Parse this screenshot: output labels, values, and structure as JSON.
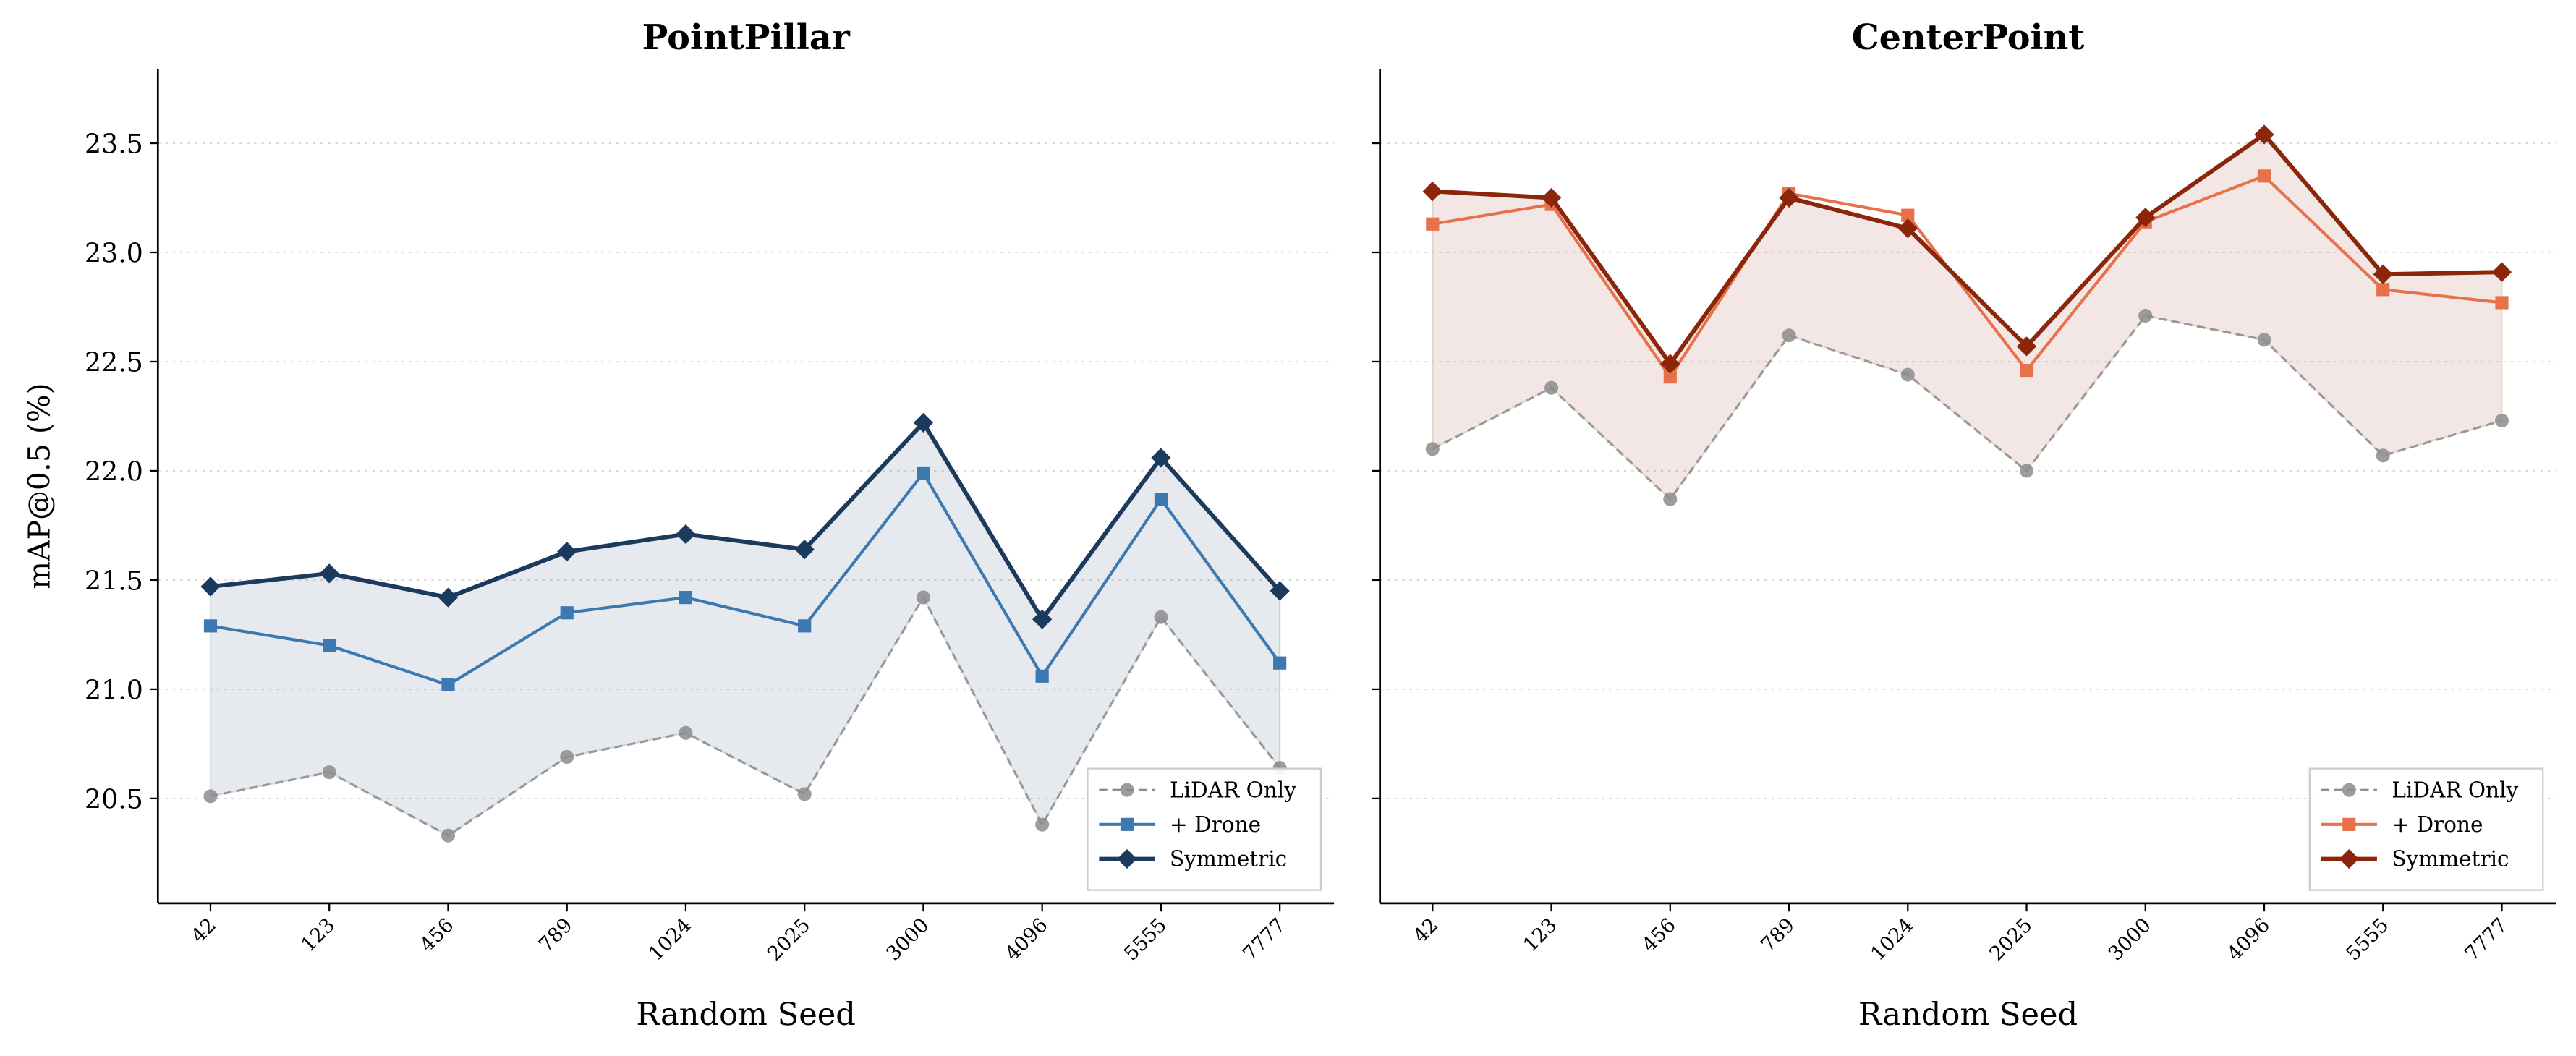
{
  "chart_data": [
    {
      "type": "line",
      "title": "PointPillar",
      "xlabel": "Random Seed",
      "ylabel": "mAP@0.5 (%)",
      "categories": [
        "42",
        "123",
        "456",
        "789",
        "1024",
        "2025",
        "3000",
        "4096",
        "5555",
        "7777"
      ],
      "ylim": [
        20.02,
        23.84
      ],
      "yticks": [
        20.5,
        21.0,
        21.5,
        22.0,
        22.5,
        23.0,
        23.5
      ],
      "ytick_labels": [
        "20.5",
        "21.0",
        "21.5",
        "22.0",
        "22.5",
        "23.0",
        "23.5"
      ],
      "grid": "horizontal dotted",
      "legend": "lower-right",
      "fill_between": [
        "LiDAR Only",
        "Symmetric"
      ],
      "series": [
        {
          "name": "LiDAR Only",
          "color": "#8c8c8c",
          "marker": "circle",
          "style": "dashed",
          "values": [
            20.51,
            20.62,
            20.33,
            20.69,
            20.8,
            20.52,
            21.42,
            20.38,
            21.33,
            20.64
          ]
        },
        {
          "name": "+ Drone",
          "color": "#3d79b1",
          "marker": "square",
          "style": "solid",
          "values": [
            21.29,
            21.2,
            21.02,
            21.35,
            21.42,
            21.29,
            21.99,
            21.06,
            21.87,
            21.12
          ]
        },
        {
          "name": "Symmetric",
          "color": "#1c3a5e",
          "marker": "diamond",
          "style": "solid-bold",
          "values": [
            21.47,
            21.53,
            21.42,
            21.63,
            21.71,
            21.64,
            22.22,
            21.32,
            22.06,
            21.45
          ]
        }
      ]
    },
    {
      "type": "line",
      "title": "CenterPoint",
      "xlabel": "Random Seed",
      "ylabel": "",
      "categories": [
        "42",
        "123",
        "456",
        "789",
        "1024",
        "2025",
        "3000",
        "4096",
        "5555",
        "7777"
      ],
      "ylim": [
        20.02,
        23.84
      ],
      "yticks": [
        20.5,
        21.0,
        21.5,
        22.0,
        22.5,
        23.0,
        23.5
      ],
      "ytick_labels": [],
      "grid": "horizontal dotted",
      "legend": "lower-right",
      "fill_between": [
        "LiDAR Only",
        "Symmetric"
      ],
      "series": [
        {
          "name": "LiDAR Only",
          "color": "#8c8c8c",
          "marker": "circle",
          "style": "dashed",
          "values": [
            22.1,
            22.38,
            21.87,
            22.62,
            22.44,
            22.0,
            22.71,
            22.6,
            22.07,
            22.23
          ]
        },
        {
          "name": "+ Drone",
          "color": "#e8704a",
          "marker": "square",
          "style": "solid",
          "values": [
            23.13,
            23.22,
            22.43,
            23.27,
            23.17,
            22.46,
            23.14,
            23.35,
            22.83,
            22.77
          ]
        },
        {
          "name": "Symmetric",
          "color": "#8b260a",
          "marker": "diamond",
          "style": "solid-bold",
          "values": [
            23.28,
            23.25,
            22.49,
            23.25,
            23.11,
            22.57,
            23.16,
            23.54,
            22.9,
            22.91
          ]
        }
      ]
    }
  ]
}
